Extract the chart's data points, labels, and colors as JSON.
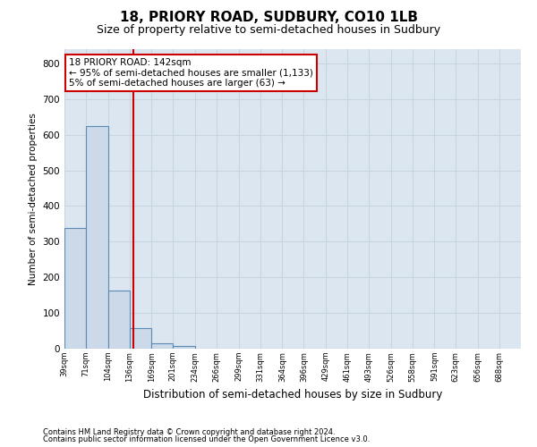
{
  "title": "18, PRIORY ROAD, SUDBURY, CO10 1LB",
  "subtitle": "Size of property relative to semi-detached houses in Sudbury",
  "xlabel": "Distribution of semi-detached houses by size in Sudbury",
  "ylabel": "Number of semi-detached properties",
  "footnote1": "Contains HM Land Registry data © Crown copyright and database right 2024.",
  "footnote2": "Contains public sector information licensed under the Open Government Licence v3.0.",
  "bins": [
    39,
    71,
    104,
    136,
    169,
    201,
    234,
    266,
    299,
    331,
    364,
    396,
    429,
    461,
    493,
    526,
    558,
    591,
    623,
    656,
    688
  ],
  "bin_labels": [
    "39sqm",
    "71sqm",
    "104sqm",
    "136sqm",
    "169sqm",
    "201sqm",
    "234sqm",
    "266sqm",
    "299sqm",
    "331sqm",
    "364sqm",
    "396sqm",
    "429sqm",
    "461sqm",
    "493sqm",
    "526sqm",
    "558sqm",
    "591sqm",
    "623sqm",
    "656sqm",
    "688sqm"
  ],
  "values": [
    338,
    625,
    162,
    58,
    15,
    7,
    0,
    0,
    0,
    0,
    0,
    0,
    0,
    0,
    0,
    0,
    0,
    0,
    0,
    0
  ],
  "bar_color": "#ccd9e8",
  "bar_edge_color": "#5b8ab5",
  "property_line_x": 142,
  "property_line_color": "#cc0000",
  "annotation_text_line1": "18 PRIORY ROAD: 142sqm",
  "annotation_text_line2": "← 95% of semi-detached houses are smaller (1,133)",
  "annotation_text_line3": "5% of semi-detached houses are larger (63) →",
  "annotation_box_color": "#ffffff",
  "annotation_box_edge": "#cc0000",
  "ylim": [
    0,
    840
  ],
  "yticks": [
    0,
    100,
    200,
    300,
    400,
    500,
    600,
    700,
    800
  ],
  "grid_color": "#c8d4e0",
  "bg_color": "#dce6f0",
  "title_fontsize": 11,
  "subtitle_fontsize": 9
}
